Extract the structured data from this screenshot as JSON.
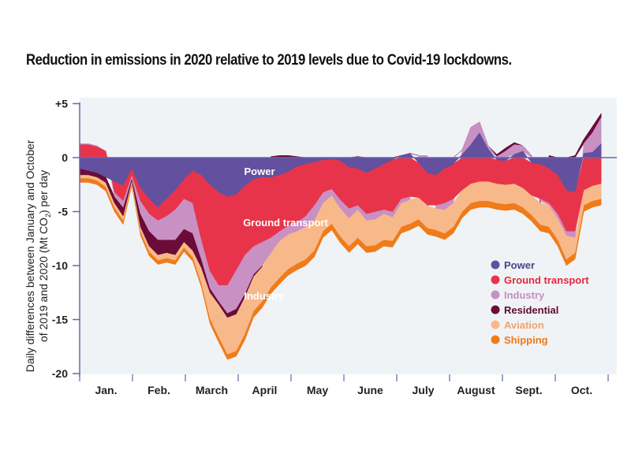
{
  "chart_data": {
    "type": "area",
    "stacked": true,
    "title": "Reduction in emissions in 2020 relative to 2019 levels due to Covid-19 lockdowns.",
    "ylabel_line1": "Daily differences between January and October",
    "ylabel_line2_pre": "of 2019 and 2020 (Mt CO",
    "ylabel_line2_sub": "2",
    "ylabel_line2_post": ") per day",
    "xlabel": "",
    "ylim": [
      -20,
      5
    ],
    "yticks": [
      5,
      0,
      -5,
      -10,
      -15,
      -20
    ],
    "ytick_labels": [
      "+5",
      "0",
      "-5",
      "-10",
      "-15",
      "-20"
    ],
    "months": [
      "Jan.",
      "Feb.",
      "March",
      "April",
      "May",
      "June",
      "July",
      "August",
      "Sept.",
      "Oct."
    ],
    "x_unit": "day of year (sampled every 5 days)",
    "x": [
      0,
      5,
      10,
      15,
      20,
      25,
      30,
      35,
      40,
      45,
      50,
      55,
      60,
      65,
      70,
      75,
      80,
      85,
      90,
      95,
      100,
      105,
      110,
      115,
      120,
      125,
      130,
      135,
      140,
      145,
      150,
      155,
      160,
      165,
      170,
      175,
      180,
      185,
      190,
      195,
      200,
      205,
      210,
      215,
      220,
      225,
      230,
      235,
      240,
      245,
      250,
      255,
      260,
      265,
      270,
      275,
      280,
      285,
      290,
      295,
      300
    ],
    "series": [
      {
        "name": "Power",
        "color": "#63509e",
        "values": [
          -1.0,
          -1.2,
          -1.4,
          -1.8,
          -2.2,
          -2.6,
          -1.0,
          -2.8,
          -3.8,
          -4.6,
          -3.8,
          -3.0,
          -2.0,
          -1.2,
          -1.6,
          -2.5,
          -3.2,
          -3.6,
          -3.4,
          -2.6,
          -2.0,
          -1.8,
          -1.8,
          -1.6,
          -1.3,
          -0.8,
          -0.6,
          -0.4,
          -0.2,
          -0.1,
          -0.3,
          -0.9,
          -1.0,
          -1.4,
          -1.0,
          -0.6,
          -0.2,
          0.2,
          0.4,
          -0.5,
          -1.4,
          -1.6,
          -1.0,
          -0.6,
          0.3,
          1.2,
          2.3,
          0.8,
          -0.2,
          -0.3,
          0.3,
          0.6,
          -0.5,
          -0.6,
          -1.0,
          -1.6,
          -3.0,
          -3.2,
          0.4,
          0.5,
          1.3
        ]
      },
      {
        "name": "Ground transport",
        "color": "#e8344a",
        "values": [
          1.2,
          1.2,
          1.0,
          0.6,
          -1.0,
          -1.4,
          -0.6,
          -1.2,
          -1.4,
          -1.2,
          -1.6,
          -1.8,
          -1.8,
          -3.0,
          -6.0,
          -8.0,
          -8.6,
          -8.2,
          -7.0,
          -6.4,
          -6.2,
          -6.0,
          -5.6,
          -5.2,
          -5.0,
          -5.2,
          -4.8,
          -4.0,
          -3.0,
          -2.8,
          -3.6,
          -3.8,
          -3.4,
          -3.8,
          -4.0,
          -4.2,
          -4.8,
          -3.8,
          -3.6,
          -3.2,
          -3.0,
          -2.8,
          -3.2,
          -3.2,
          -3.0,
          -2.4,
          -2.2,
          -2.2,
          -2.2,
          -2.2,
          -2.4,
          -2.8,
          -3.0,
          -3.2,
          -3.2,
          -3.6,
          -3.8,
          -3.6,
          -3.0,
          -2.6,
          -2.4
        ]
      },
      {
        "name": "Industry",
        "color": "#c990c4",
        "values": [
          0.1,
          0.1,
          0.1,
          0.0,
          -0.4,
          -0.6,
          -0.3,
          -1.2,
          -1.6,
          -1.8,
          -2.2,
          -2.8,
          -2.8,
          -2.8,
          -1.8,
          -1.6,
          -1.5,
          -2.6,
          -3.6,
          -3.6,
          -2.6,
          -2.2,
          -1.4,
          -0.9,
          -0.8,
          -0.8,
          -1.0,
          -1.4,
          -1.0,
          -0.6,
          -0.8,
          -0.9,
          -0.4,
          -0.6,
          -0.7,
          -0.4,
          -0.5,
          -0.4,
          -0.3,
          0.2,
          0.2,
          -0.3,
          -0.6,
          -0.4,
          0.4,
          1.6,
          1.0,
          0.3,
          0.1,
          0.6,
          0.9,
          0.5,
          0.2,
          -0.2,
          -0.2,
          -0.4,
          -0.4,
          -0.6,
          0.9,
          1.8,
          2.4
        ]
      },
      {
        "name": "Residential",
        "color": "#6b0c38",
        "values": [
          -0.6,
          -0.4,
          -0.4,
          -0.5,
          -0.6,
          -0.8,
          -0.2,
          -1.2,
          -1.4,
          -1.4,
          -1.2,
          -1.4,
          -1.2,
          -1.6,
          -0.8,
          -0.4,
          -0.3,
          -0.4,
          -0.5,
          -0.3,
          -0.2,
          -0.1,
          0.1,
          0.2,
          0.2,
          0.1,
          0.0,
          0.0,
          0.0,
          0.0,
          0.0,
          0.0,
          0.1,
          0.0,
          0.0,
          0.0,
          0.0,
          0.0,
          0.0,
          0.0,
          -0.1,
          0.0,
          0.0,
          0.0,
          0.0,
          0.0,
          0.0,
          0.0,
          0.2,
          0.3,
          0.2,
          0.0,
          0.0,
          -0.2,
          0.2,
          0.0,
          0.0,
          0.2,
          0.4,
          0.6,
          0.4
        ]
      },
      {
        "name": "Aviation",
        "color": "#f8b98a",
        "values": [
          -0.3,
          -0.3,
          -0.3,
          -0.4,
          -0.4,
          -0.4,
          -0.2,
          -0.4,
          -0.5,
          -0.5,
          -0.5,
          -0.5,
          -0.5,
          -0.6,
          -1.4,
          -2.4,
          -3.0,
          -3.4,
          -3.4,
          -3.4,
          -3.2,
          -3.2,
          -3.2,
          -3.4,
          -3.2,
          -3.0,
          -3.0,
          -2.8,
          -2.6,
          -2.6,
          -2.6,
          -2.6,
          -2.6,
          -2.4,
          -2.4,
          -2.4,
          -2.2,
          -2.2,
          -2.2,
          -2.0,
          -2.0,
          -2.0,
          -2.2,
          -2.2,
          -2.0,
          -1.8,
          -1.8,
          -1.8,
          -1.8,
          -1.8,
          -1.8,
          -1.8,
          -1.8,
          -2.0,
          -2.0,
          -2.0,
          -2.2,
          -1.4,
          -1.4,
          -1.4,
          -1.4
        ]
      },
      {
        "name": "Shipping",
        "color": "#ef7b1a",
        "values": [
          -0.4,
          -0.4,
          -0.4,
          -0.4,
          -0.4,
          -0.4,
          -0.3,
          -0.4,
          -0.4,
          -0.4,
          -0.4,
          -0.4,
          -0.4,
          -0.4,
          -0.4,
          -0.5,
          -0.5,
          -0.5,
          -0.5,
          -0.6,
          -0.6,
          -0.6,
          -0.6,
          -0.6,
          -0.6,
          -0.6,
          -0.6,
          -0.6,
          -0.6,
          -0.6,
          -0.6,
          -0.6,
          -0.6,
          -0.6,
          -0.6,
          -0.6,
          -0.6,
          -0.6,
          -0.6,
          -0.6,
          -0.6,
          -0.6,
          -0.6,
          -0.6,
          -0.6,
          -0.6,
          -0.6,
          -0.6,
          -0.6,
          -0.6,
          -0.6,
          -0.6,
          -0.6,
          -0.6,
          -0.6,
          -0.6,
          -0.6,
          -0.6,
          -0.6,
          -0.6,
          -0.6
        ]
      }
    ],
    "annotations": [
      {
        "text": "Power",
        "series": "Power"
      },
      {
        "text": "Ground transport",
        "series": "Ground transport"
      },
      {
        "text": "Industry",
        "series": "Industry"
      }
    ],
    "legend": {
      "placement": "bottom-right",
      "entries": [
        "Power",
        "Ground transport",
        "Industry",
        "Residential",
        "Aviation",
        "Shipping"
      ]
    },
    "grid": false,
    "colors": {
      "background": "#f0f3f6",
      "axis": "#6a64b0"
    }
  }
}
